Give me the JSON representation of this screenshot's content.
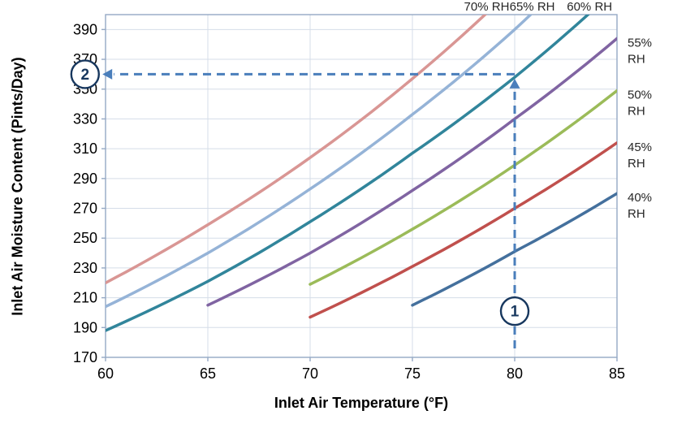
{
  "chart_data": {
    "type": "line",
    "title": "",
    "xlabel": "Inlet Air Temperature (°F)",
    "ylabel": "Inlet Air Moisture Content (Pints/Day)",
    "xlim": [
      60,
      85
    ],
    "ylim": [
      170,
      400
    ],
    "xticks": [
      60,
      65,
      70,
      75,
      80,
      85
    ],
    "yticks": [
      170,
      190,
      210,
      230,
      250,
      270,
      290,
      310,
      330,
      350,
      370,
      390
    ],
    "grid": true,
    "legend_position": "curve-end-labels",
    "series": [
      {
        "name": "70% RH",
        "label_lines": [
          "70% RH"
        ],
        "label_side": "top",
        "color": "#d99694",
        "points": [
          [
            60,
            220
          ],
          [
            65,
            259
          ],
          [
            70,
            304
          ],
          [
            75,
            357
          ],
          [
            80,
            419
          ]
        ]
      },
      {
        "name": "65% RH",
        "label_lines": [
          "65% RH"
        ],
        "label_side": "top",
        "color": "#95b3d7",
        "points": [
          [
            60,
            204
          ],
          [
            65,
            240
          ],
          [
            70,
            283
          ],
          [
            75,
            333
          ],
          [
            80,
            390
          ],
          [
            85,
            459
          ]
        ]
      },
      {
        "name": "60% RH",
        "label_lines": [
          "60% RH"
        ],
        "label_side": "top",
        "color": "#31859b",
        "points": [
          [
            60,
            188
          ],
          [
            65,
            221
          ],
          [
            70,
            261
          ],
          [
            75,
            307
          ],
          [
            80,
            358
          ],
          [
            85,
            418
          ]
        ]
      },
      {
        "name": "55% RH",
        "label_lines": [
          "55%",
          "RH"
        ],
        "label_side": "right",
        "color": "#8064a2",
        "points": [
          [
            65,
            205
          ],
          [
            70,
            240
          ],
          [
            75,
            282
          ],
          [
            80,
            330
          ],
          [
            85,
            384
          ]
        ]
      },
      {
        "name": "50% RH",
        "label_lines": [
          "50%",
          "RH"
        ],
        "label_side": "right",
        "color": "#9bbb59",
        "points": [
          [
            70,
            219
          ],
          [
            75,
            256
          ],
          [
            80,
            299
          ],
          [
            85,
            349
          ]
        ]
      },
      {
        "name": "45% RH",
        "label_lines": [
          "45%",
          "RH"
        ],
        "label_side": "right",
        "color": "#c0504d",
        "points": [
          [
            70,
            197
          ],
          [
            75,
            231
          ],
          [
            80,
            270
          ],
          [
            85,
            314
          ]
        ]
      },
      {
        "name": "40% RH",
        "label_lines": [
          "40%",
          "RH"
        ],
        "label_side": "right",
        "color": "#44709d",
        "points": [
          [
            75,
            205
          ],
          [
            80,
            241
          ],
          [
            85,
            280
          ]
        ]
      }
    ],
    "annotations": {
      "color": "#4a7ebb",
      "marker_color": "#17375e",
      "arrows": [
        {
          "name": "step-1-arrow",
          "from": [
            80,
            176
          ],
          "to": [
            80,
            357
          ],
          "direction": "up"
        },
        {
          "name": "step-2-arrow",
          "from": [
            80,
            360
          ],
          "to": [
            59.85,
            360
          ],
          "direction": "left"
        }
      ],
      "markers": [
        {
          "label": "1",
          "x": 80,
          "y": 201
        },
        {
          "label": "2",
          "x": 59,
          "y": 360
        }
      ]
    }
  },
  "colors": {
    "grid": "#d5dde8",
    "border": "#95a9c4",
    "tick_text": "#000000",
    "label_text": "#262626",
    "background": "#ffffff"
  }
}
